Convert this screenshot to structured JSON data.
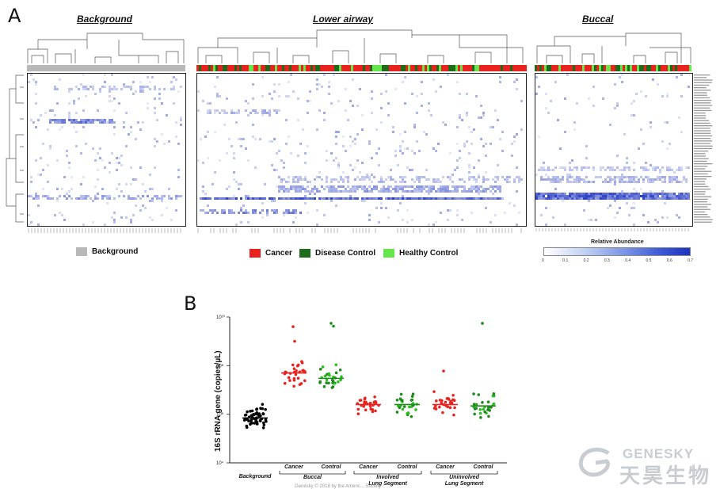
{
  "panels": {
    "a_letter": "A",
    "b_letter": "B"
  },
  "heatmaps": {
    "background_title": "Background",
    "lower_airway_title": "Lower airway",
    "buccal_title": "Buccal"
  },
  "legend": {
    "background_label": "Background",
    "background_color": "#b8b8b8",
    "cancer_label": "Cancer",
    "cancer_color": "#e8231f",
    "disease_control_label": "Disease Control",
    "disease_control_color": "#1f6b1c",
    "healthy_control_label": "Healthy Control",
    "healthy_control_color": "#66e64a",
    "relative_abundance_title": "Relative Abundance",
    "relative_abundance_ticks": [
      "0",
      "0.1",
      "0.2",
      "0.3",
      "0.4",
      "0.5",
      "0.6",
      "0.7"
    ]
  },
  "chart_data": {
    "type": "scatter",
    "ylabel": "16S rRNA gene (copies/µL)",
    "yscale": "log",
    "ylim": [
      10000,
      10000000000
    ],
    "yticks": [
      "10⁴",
      "10⁶",
      "10⁸",
      "10¹⁰"
    ],
    "ytick_values": [
      10000,
      1000000,
      100000000,
      10000000000
    ],
    "categories": [
      "Background",
      "Cancer",
      "Control",
      "Cancer",
      "Control",
      "Cancer",
      "Control"
    ],
    "groups": [
      {
        "label": "Buccal",
        "members": [
          1,
          2
        ]
      },
      {
        "label": "Involved Lung Segment",
        "line1": "Involved",
        "line2": "Lung Segment",
        "members": [
          3,
          4
        ]
      },
      {
        "label": "Uninvolved Lung Segment",
        "line1": "Uninvolved",
        "line2": "Lung Segment",
        "members": [
          5,
          6
        ]
      }
    ],
    "series": [
      {
        "category": "Background",
        "color": "#000000",
        "median": 700000
      },
      {
        "category": "Buccal Cancer",
        "color": "#e8231f",
        "median": 50000000
      },
      {
        "category": "Buccal Control",
        "color": "#1f8a1c",
        "median": 30000000
      },
      {
        "category": "Involved Cancer",
        "color": "#e8231f",
        "median": 2500000
      },
      {
        "category": "Involved Control",
        "color": "#1f8a1c",
        "median": 2500000
      },
      {
        "category": "Uninvolved Cancer",
        "color": "#e8231f",
        "median": 2500000
      },
      {
        "category": "Uninvolved Control",
        "color": "#1f8a1c",
        "median": 2200000
      }
    ]
  },
  "watermark": {
    "english": "GENESKY",
    "chinese": "天昊生物",
    "copyright": "Genesky © 2018 by the Americ... Society"
  }
}
